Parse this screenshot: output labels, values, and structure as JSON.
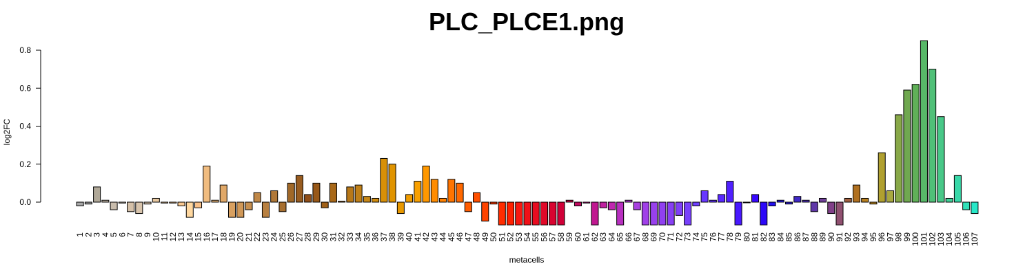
{
  "chart_data": {
    "type": "bar",
    "title": "PLC_PLCE1.png",
    "xlabel": "metacells",
    "ylabel": "log2FC",
    "ylim": [
      -0.12,
      0.85
    ],
    "yticks": [
      0.0,
      0.2,
      0.4,
      0.6,
      0.8
    ],
    "ytick_labels": [
      "0.0",
      "0.2",
      "0.4",
      "0.6",
      "0.8"
    ],
    "grid": false,
    "categories": [
      "1",
      "2",
      "3",
      "4",
      "5",
      "6",
      "7",
      "8",
      "9",
      "10",
      "11",
      "12",
      "13",
      "14",
      "15",
      "16",
      "17",
      "18",
      "19",
      "20",
      "21",
      "22",
      "23",
      "24",
      "25",
      "26",
      "27",
      "28",
      "29",
      "30",
      "31",
      "32",
      "33",
      "34",
      "35",
      "36",
      "37",
      "38",
      "39",
      "40",
      "41",
      "42",
      "43",
      "44",
      "45",
      "46",
      "47",
      "48",
      "49",
      "50",
      "51",
      "52",
      "53",
      "54",
      "55",
      "56",
      "57",
      "58",
      "59",
      "60",
      "61",
      "62",
      "63",
      "64",
      "65",
      "66",
      "67",
      "68",
      "69",
      "70",
      "71",
      "72",
      "73",
      "74",
      "75",
      "76",
      "77",
      "78",
      "79",
      "80",
      "81",
      "82",
      "83",
      "84",
      "85",
      "86",
      "87",
      "88",
      "89",
      "90",
      "91",
      "92",
      "93",
      "94",
      "95",
      "96",
      "97",
      "98",
      "99",
      "100",
      "101",
      "102",
      "103",
      "104",
      "105",
      "106",
      "107"
    ],
    "values": [
      -0.02,
      -0.01,
      0.08,
      0.01,
      -0.04,
      -0.005,
      -0.05,
      -0.06,
      -0.01,
      0.02,
      -0.005,
      -0.005,
      -0.02,
      -0.08,
      -0.03,
      0.19,
      0.01,
      0.09,
      -0.08,
      -0.08,
      -0.04,
      0.05,
      -0.08,
      0.06,
      -0.05,
      0.1,
      0.14,
      0.04,
      0.1,
      -0.03,
      0.1,
      0.005,
      0.08,
      0.09,
      0.03,
      0.02,
      0.23,
      0.2,
      -0.06,
      0.04,
      0.11,
      0.19,
      0.12,
      0.02,
      0.12,
      0.1,
      -0.05,
      0.05,
      -0.1,
      -0.01,
      -0.12,
      -0.12,
      -0.12,
      -0.12,
      -0.12,
      -0.12,
      -0.12,
      -0.12,
      0.01,
      -0.02,
      -0.005,
      -0.12,
      -0.03,
      -0.04,
      -0.12,
      0.01,
      -0.04,
      -0.12,
      -0.12,
      -0.12,
      -0.12,
      -0.07,
      -0.12,
      -0.02,
      0.06,
      0.01,
      0.04,
      0.11,
      -0.12,
      0.0,
      0.04,
      -0.12,
      -0.02,
      0.01,
      -0.01,
      0.03,
      0.01,
      -0.05,
      0.02,
      -0.06,
      -0.12,
      0.02,
      0.09,
      0.02,
      -0.01,
      0.26,
      0.06,
      0.46,
      0.59,
      0.62,
      0.85,
      0.7,
      0.45,
      0.02,
      0.14,
      -0.04,
      -0.06
    ],
    "colors": [
      "#a8a8a8",
      "#a8a8a8",
      "#b0a898",
      "#c0b4a4",
      "#c8bcac",
      "#d0c4b4",
      "#d4c0a8",
      "#d8c4ac",
      "#dcc8b0",
      "#e8c8a0",
      "#f0c898",
      "#f4c490",
      "#f8c890",
      "#ffd8a0",
      "#f8c088",
      "#f0bc80",
      "#e8b478",
      "#e0a868",
      "#d8a060",
      "#d09858",
      "#c89050",
      "#c08848",
      "#b88040",
      "#b07838",
      "#a87030",
      "#a06828",
      "#985c20",
      "#904e18",
      "#985818",
      "#a06018",
      "#a86818",
      "#b07018",
      "#b87818",
      "#c08018",
      "#c88818",
      "#d08c10",
      "#d89008",
      "#e09400",
      "#e89800",
      "#f09c00",
      "#f8a000",
      "#ff9800",
      "#ff8c00",
      "#ff8000",
      "#ff7400",
      "#ff6800",
      "#ff5c00",
      "#ff5000",
      "#ff4400",
      "#ff3800",
      "#ff2c00",
      "#ff2000",
      "#f81810",
      "#f01018",
      "#e80c20",
      "#e00828",
      "#d80430",
      "#d00038",
      "#c80040",
      "#c00c60",
      "#b81880",
      "#c01890",
      "#c020a0",
      "#c028b0",
      "#b830c0",
      "#b038d0",
      "#a840e0",
      "#a040e8",
      "#9840ec",
      "#9040f0",
      "#8840f4",
      "#8040f8",
      "#7840fc",
      "#7040ff",
      "#6838ff",
      "#6030ff",
      "#5828ff",
      "#5020ff",
      "#4818ff",
      "#4010ff",
      "#3808ff",
      "#2c08f8",
      "#2410f0",
      "#2418e8",
      "#3020d8",
      "#4028c8",
      "#5030b8",
      "#6038a8",
      "#704098",
      "#804088",
      "#905070",
      "#a06040",
      "#b07020",
      "#b88020",
      "#c08820",
      "#b0a030",
      "#a8a840",
      "#88a848",
      "#70a850",
      "#60b058",
      "#58b868",
      "#50c078",
      "#48c888",
      "#40d098",
      "#38d8a8",
      "#30e0b8",
      "#28e8c8"
    ]
  }
}
